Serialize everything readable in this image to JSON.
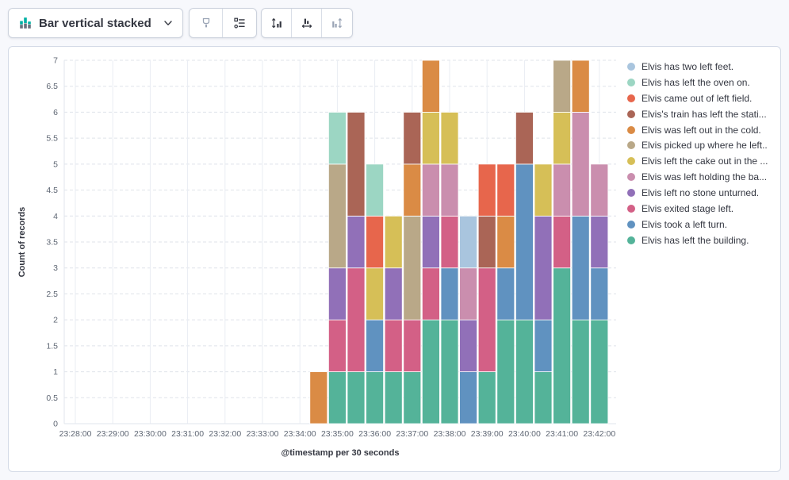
{
  "toolbar": {
    "chart_type": {
      "label": "Bar vertical stacked"
    },
    "buttons": [
      {
        "id": "visual-options",
        "icon": "brush-icon",
        "disabled": true
      },
      {
        "id": "legend-settings",
        "icon": "legend-list-icon",
        "disabled": false
      },
      {
        "id": "left-axis-settings",
        "icon": "axis-left-icon",
        "disabled": false
      },
      {
        "id": "bottom-axis-settings",
        "icon": "axis-bottom-icon",
        "disabled": false
      },
      {
        "id": "right-axis-settings",
        "icon": "axis-right-icon",
        "disabled": true
      }
    ]
  },
  "chart_data": {
    "type": "bar",
    "stacked": true,
    "orientation": "vertical",
    "xlabel": "@timestamp per 30 seconds",
    "ylabel": "Count of records",
    "ylim": [
      0,
      7
    ],
    "y_tick_step": 0.5,
    "y_tick_labels": [
      "0",
      "0.5",
      "1",
      "1.5",
      "2",
      "2.5",
      "3",
      "3.5",
      "4",
      "4.5",
      "5",
      "5.5",
      "6",
      "6.5",
      "7"
    ],
    "x_axis_tick_labels": [
      "23:28:00",
      "23:29:00",
      "23:30:00",
      "23:31:00",
      "23:32:00",
      "23:33:00",
      "23:34:00",
      "23:35:00",
      "23:36:00",
      "23:37:00",
      "23:38:00",
      "23:39:00",
      "23:40:00",
      "23:41:00",
      "23:42:00"
    ],
    "grid": true,
    "legend_position": "right",
    "categories": [
      "23:34:30",
      "23:35:00",
      "23:35:30",
      "23:36:00",
      "23:36:30",
      "23:37:00",
      "23:37:30",
      "23:38:00",
      "23:38:30",
      "23:39:00",
      "23:39:30",
      "23:40:00",
      "23:40:30",
      "23:41:00",
      "23:41:30",
      "23:42:00"
    ],
    "series": [
      {
        "name": "Elvis has left the building.",
        "color": "#54B399",
        "values": [
          0,
          1,
          1,
          1,
          1,
          1,
          2,
          2,
          0,
          1,
          2,
          2,
          1,
          3,
          2,
          2
        ]
      },
      {
        "name": "Elvis took a left turn.",
        "color": "#6092C0",
        "values": [
          0,
          0,
          0,
          1,
          0,
          0,
          0,
          1,
          1,
          0,
          1,
          3,
          1,
          0,
          2,
          1
        ]
      },
      {
        "name": "Elvis exited stage left.",
        "color": "#D36086",
        "values": [
          0,
          1,
          2,
          0,
          1,
          1,
          1,
          1,
          0,
          2,
          0,
          0,
          0,
          1,
          0,
          0
        ]
      },
      {
        "name": "Elvis left no stone unturned.",
        "color": "#9170B8",
        "values": [
          0,
          1,
          1,
          0,
          1,
          0,
          1,
          0,
          1,
          0,
          0,
          0,
          2,
          0,
          0,
          1
        ]
      },
      {
        "name": "Elvis was left holding the ba...",
        "color": "#CA8EAE",
        "values": [
          0,
          0,
          0,
          0,
          0,
          0,
          1,
          1,
          1,
          0,
          0,
          0,
          0,
          1,
          2,
          1
        ]
      },
      {
        "name": "Elvis left the cake out in the ...",
        "color": "#D6BF57",
        "values": [
          0,
          0,
          0,
          1,
          1,
          0,
          1,
          1,
          0,
          0,
          0,
          0,
          1,
          1,
          0,
          0
        ]
      },
      {
        "name": "Elvis picked up where he left...",
        "color": "#B9A888",
        "values": [
          0,
          2,
          0,
          0,
          0,
          2,
          0,
          0,
          0,
          0,
          0,
          0,
          0,
          1,
          0,
          0
        ]
      },
      {
        "name": "Elvis was left out in the cold.",
        "color": "#DA8B45",
        "values": [
          1,
          0,
          0,
          0,
          0,
          1,
          1,
          0,
          0,
          0,
          1,
          0,
          0,
          0,
          1,
          0
        ]
      },
      {
        "name": "Elvis's train has left the stati...",
        "color": "#AA6556",
        "values": [
          0,
          0,
          2,
          0,
          0,
          1,
          0,
          0,
          0,
          1,
          0,
          1,
          0,
          0,
          0,
          0
        ]
      },
      {
        "name": "Elvis came out of left field.",
        "color": "#E7664C",
        "values": [
          0,
          0,
          0,
          1,
          0,
          0,
          0,
          0,
          0,
          1,
          1,
          0,
          0,
          0,
          0,
          0
        ]
      },
      {
        "name": "Elvis has left the oven on.",
        "color": "#9CD6C3",
        "values": [
          0,
          1,
          0,
          1,
          0,
          0,
          0,
          0,
          0,
          0,
          0,
          0,
          0,
          0,
          0,
          0
        ]
      },
      {
        "name": "Elvis has two left feet.",
        "color": "#A9C5DE",
        "values": [
          0,
          0,
          0,
          0,
          0,
          0,
          0,
          0,
          1,
          0,
          0,
          0,
          0,
          0,
          0,
          0
        ]
      }
    ],
    "legend": [
      {
        "label": "Elvis has two left feet.",
        "color": "#A9C5DE"
      },
      {
        "label": "Elvis has left the oven on.",
        "color": "#9CD6C3"
      },
      {
        "label": "Elvis came out of left field.",
        "color": "#E7664C"
      },
      {
        "label": "Elvis's train has left the stati...",
        "color": "#AA6556"
      },
      {
        "label": "Elvis was left out in the cold.",
        "color": "#DA8B45"
      },
      {
        "label": "Elvis picked up where he left...",
        "color": "#B9A888"
      },
      {
        "label": "Elvis left the cake out in the ...",
        "color": "#D6BF57"
      },
      {
        "label": "Elvis was left holding the ba...",
        "color": "#CA8EAE"
      },
      {
        "label": "Elvis left no stone unturned.",
        "color": "#9170B8"
      },
      {
        "label": "Elvis exited stage left.",
        "color": "#D36086"
      },
      {
        "label": "Elvis took a left turn.",
        "color": "#6092C0"
      },
      {
        "label": "Elvis has left the building.",
        "color": "#54B399"
      }
    ]
  }
}
